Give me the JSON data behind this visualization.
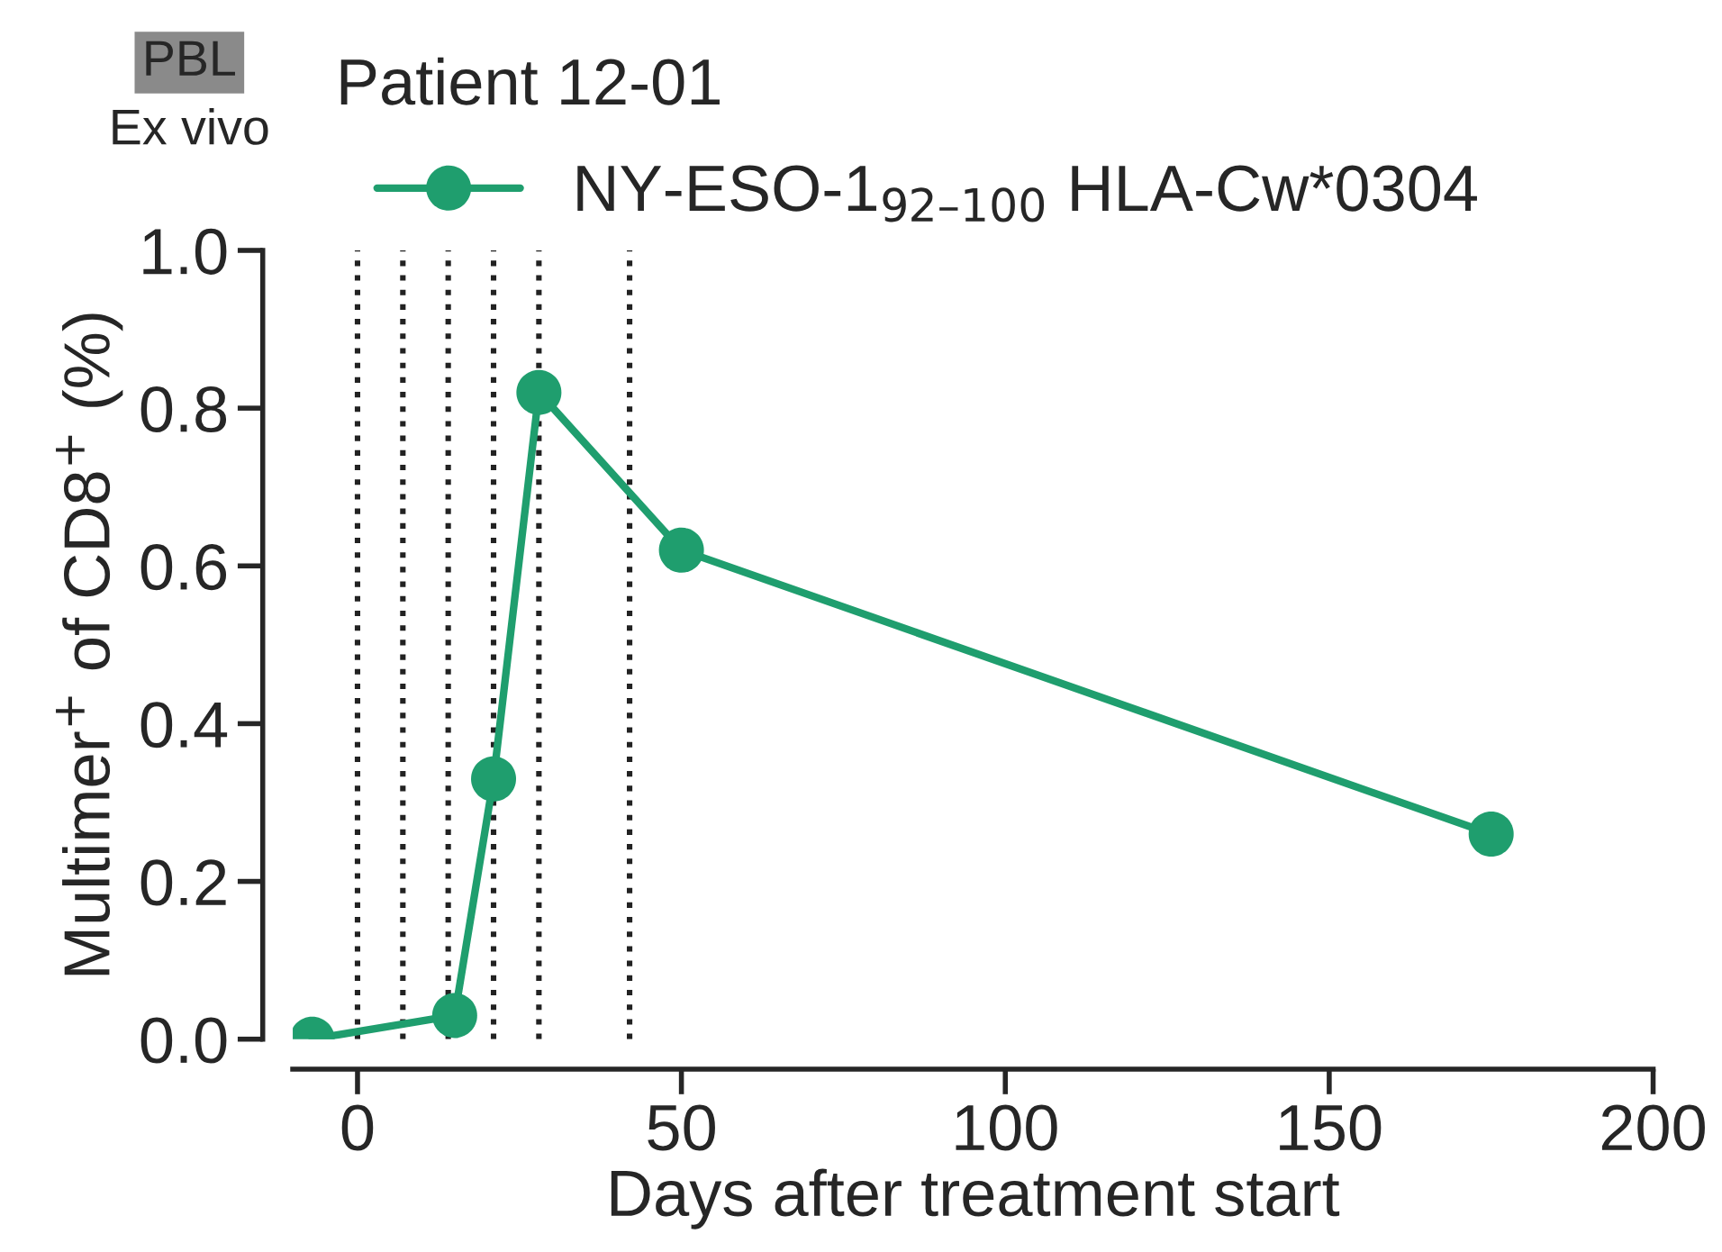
{
  "chart_data": {
    "type": "line",
    "title": "Patient 12-01",
    "annotations": [
      "PBL",
      "Ex vivo"
    ],
    "xlabel": "Days after treatment start",
    "ylabel": "Multimer$^{+}$ of CD8$^{+}$ (%)",
    "x": [
      -7,
      15,
      21,
      28,
      50,
      175
    ],
    "series": [
      {
        "name": "NY-ESO-1$_{92–100}$ HLA-Cw*0304",
        "color": "#1f9e6e",
        "values": [
          0,
          0.03,
          0.33,
          0.82,
          0.62,
          0.26
        ]
      }
    ],
    "marker": "circle",
    "line_style": "solid",
    "grid": false,
    "legend": "top",
    "xlim": [
      -10,
      200
    ],
    "xticks": [
      0,
      50,
      100,
      150,
      200
    ],
    "ylim": [
      0,
      1
    ],
    "yticks": [
      {
        "value": 0,
        "label": "0.0"
      },
      {
        "value": 0.2,
        "label": "0.2"
      },
      {
        "value": 0.4,
        "label": "0.4"
      },
      {
        "value": 0.6,
        "label": "0.6"
      },
      {
        "value": 0.8,
        "label": "0.8"
      },
      {
        "value": 1,
        "label": "1.0"
      }
    ],
    "ref_lines": [
      {
        "axis": "x",
        "value": 0,
        "color": "#222222",
        "line_style": "dotted"
      },
      {
        "axis": "x",
        "value": 7,
        "color": "#222222",
        "line_style": "dotted"
      },
      {
        "axis": "x",
        "value": 14,
        "color": "#222222",
        "line_style": "dotted"
      },
      {
        "axis": "x",
        "value": 21,
        "color": "#222222",
        "line_style": "dotted"
      },
      {
        "axis": "x",
        "value": 28,
        "color": "#222222",
        "line_style": "dotted"
      },
      {
        "axis": "x",
        "value": 42,
        "color": "#222222",
        "line_style": "dotted"
      }
    ]
  }
}
